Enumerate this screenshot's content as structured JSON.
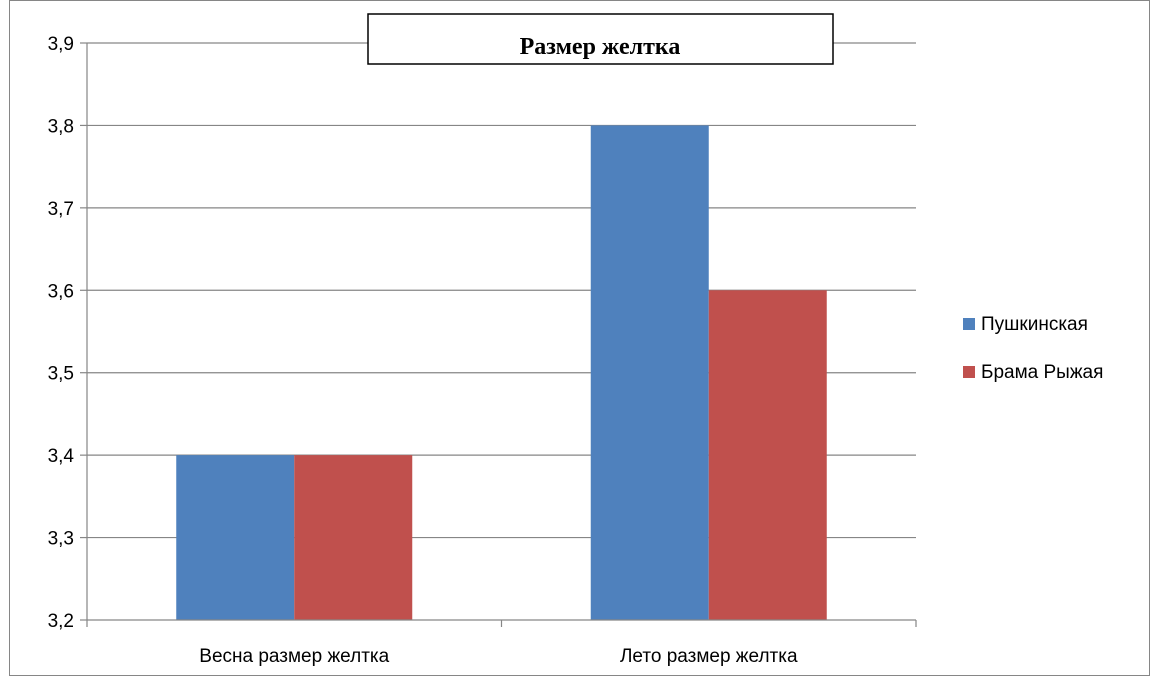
{
  "chart_data": {
    "type": "bar",
    "title": "Размер желтка",
    "categories": [
      "Весна размер желтка",
      "Лето размер желтка"
    ],
    "series": [
      {
        "name": "Пушкинская",
        "values": [
          3.4,
          3.8
        ],
        "color": "#4F81BD"
      },
      {
        "name": "Брама Рыжая",
        "values": [
          3.4,
          3.6
        ],
        "color": "#C0504D"
      }
    ],
    "ylim": [
      3.2,
      3.9
    ],
    "yticks": [
      "3,2",
      "3,3",
      "3,4",
      "3,5",
      "3,6",
      "3,7",
      "3,8",
      "3,9"
    ],
    "grid": true,
    "legend_position": "right"
  }
}
